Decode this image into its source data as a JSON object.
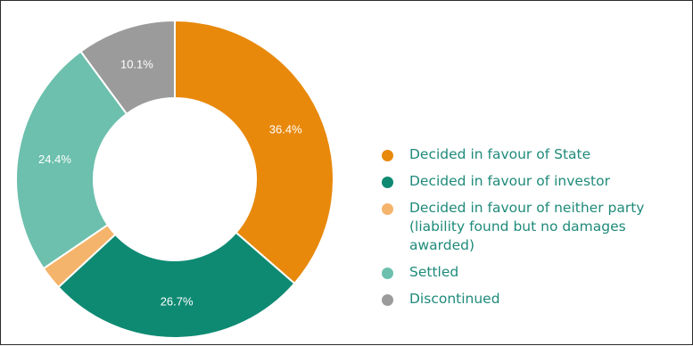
{
  "chart_data": {
    "type": "pie",
    "donut": true,
    "slices": [
      {
        "label": "Decided in favour of State",
        "value": 36.4,
        "display": "36.4%",
        "color": "#e8890c"
      },
      {
        "label": "Decided in favour of investor",
        "value": 26.7,
        "display": "26.7%",
        "color": "#0e8a73"
      },
      {
        "label": "Decided in favour of neither party (liability found but no damages awarded)",
        "value": 2.4,
        "display": "",
        "color": "#f5b46b"
      },
      {
        "label": "Settled",
        "value": 24.4,
        "display": "24.4%",
        "color": "#6cc0ad"
      },
      {
        "label": "Discontinued",
        "value": 10.1,
        "display": "10.1%",
        "color": "#9b9b9b"
      }
    ],
    "legend_placement": "right"
  },
  "legend": {
    "items": [
      {
        "label": "Decided in favour of State",
        "color": "#e8890c"
      },
      {
        "label": "Decided in favour of investor",
        "color": "#0e8a73"
      },
      {
        "label": "Decided in favour of neither party (liability found but no damages awarded)",
        "color": "#f5b46b"
      },
      {
        "label": "Settled",
        "color": "#6cc0ad"
      },
      {
        "label": "Discontinued",
        "color": "#9b9b9b"
      }
    ]
  }
}
